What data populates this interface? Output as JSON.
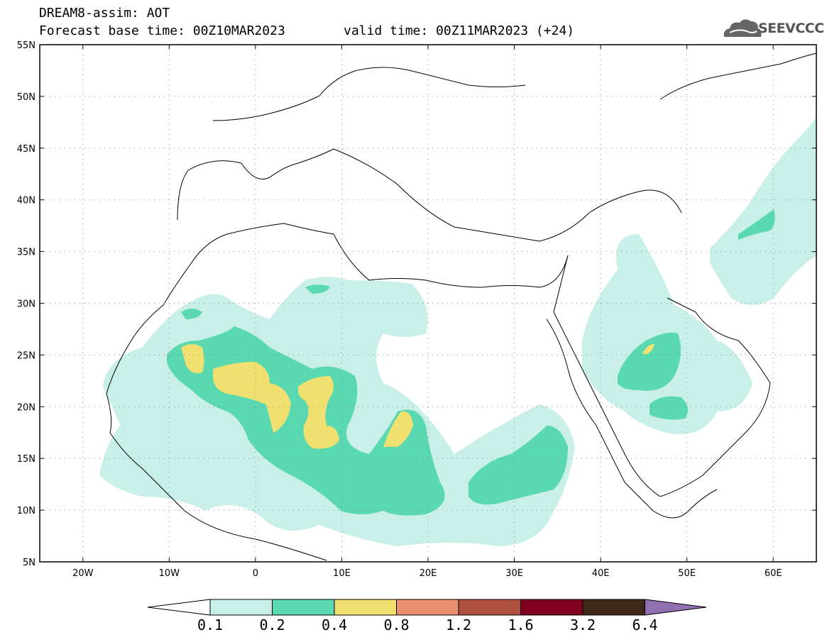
{
  "header": {
    "title": "DREAM8-assim: AOT",
    "base_time": "Forecast base time: 00Z10MAR2023",
    "valid_time": "valid time: 00Z11MAR2023 (+24)",
    "logo_text": "SEEVCCC"
  },
  "axes": {
    "lat_labels": [
      "55N",
      "50N",
      "45N",
      "40N",
      "35N",
      "30N",
      "25N",
      "20N",
      "15N",
      "10N",
      "5N"
    ],
    "lon_labels": [
      "20W",
      "10W",
      "0",
      "10E",
      "20E",
      "30E",
      "40E",
      "50E",
      "60E"
    ]
  },
  "colorbar": {
    "labels": [
      "0.1",
      "0.2",
      "0.4",
      "0.8",
      "1.2",
      "1.6",
      "3.2",
      "6.4"
    ],
    "colors": [
      "#ffffff",
      "#c8f0e8",
      "#5ad8b0",
      "#f0e070",
      "#e89070",
      "#b05040",
      "#800020",
      "#402818",
      "#9070b0"
    ]
  },
  "legend_icons": {
    "logo": "cloud-logo-icon"
  }
}
